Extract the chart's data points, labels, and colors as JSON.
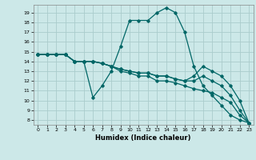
{
  "xlabel": "Humidex (Indice chaleur)",
  "bg_color": "#cce8e8",
  "grid_color": "#aacccc",
  "line_color": "#006666",
  "xlim": [
    -0.5,
    23.5
  ],
  "ylim": [
    7.5,
    19.8
  ],
  "yticks": [
    8,
    9,
    10,
    11,
    12,
    13,
    14,
    15,
    16,
    17,
    18,
    19
  ],
  "xticks": [
    0,
    1,
    2,
    3,
    4,
    5,
    6,
    7,
    8,
    9,
    10,
    11,
    12,
    13,
    14,
    15,
    16,
    17,
    18,
    19,
    20,
    21,
    22,
    23
  ],
  "lines": [
    {
      "x": [
        0,
        1,
        2,
        3,
        4,
        5,
        6,
        7,
        8,
        9,
        10,
        11,
        12,
        13,
        14,
        15,
        16,
        17,
        18,
        19,
        20,
        21,
        22,
        23
      ],
      "y": [
        14.7,
        14.7,
        14.7,
        14.7,
        14.0,
        14.0,
        10.3,
        11.5,
        13.0,
        15.5,
        18.2,
        18.2,
        18.2,
        19.0,
        19.5,
        19.0,
        17.0,
        13.5,
        11.5,
        10.5,
        9.5,
        8.5,
        8.0,
        7.7
      ]
    },
    {
      "x": [
        0,
        1,
        2,
        3,
        4,
        5,
        6,
        7,
        8,
        9,
        10,
        11,
        12,
        13,
        14,
        15,
        16,
        17,
        18,
        19,
        20,
        21,
        22,
        23
      ],
      "y": [
        14.7,
        14.7,
        14.7,
        14.7,
        14.0,
        14.0,
        14.0,
        13.8,
        13.5,
        13.0,
        12.8,
        12.5,
        12.5,
        12.0,
        12.0,
        11.8,
        11.5,
        11.2,
        11.0,
        10.8,
        10.3,
        9.8,
        8.5,
        7.7
      ]
    },
    {
      "x": [
        0,
        1,
        2,
        3,
        4,
        5,
        6,
        7,
        8,
        9,
        10,
        11,
        12,
        13,
        14,
        15,
        16,
        17,
        18,
        19,
        20,
        21,
        22,
        23
      ],
      "y": [
        14.7,
        14.7,
        14.7,
        14.7,
        14.0,
        14.0,
        14.0,
        13.8,
        13.5,
        13.2,
        13.0,
        12.8,
        12.8,
        12.5,
        12.5,
        12.2,
        12.0,
        12.0,
        12.5,
        12.0,
        11.5,
        10.5,
        9.0,
        7.7
      ]
    },
    {
      "x": [
        0,
        1,
        2,
        3,
        4,
        5,
        6,
        7,
        8,
        9,
        10,
        11,
        12,
        13,
        14,
        15,
        16,
        17,
        18,
        19,
        20,
        21,
        22,
        23
      ],
      "y": [
        14.7,
        14.7,
        14.7,
        14.7,
        14.0,
        14.0,
        14.0,
        13.8,
        13.5,
        13.2,
        13.0,
        12.8,
        12.8,
        12.5,
        12.5,
        12.2,
        12.0,
        12.5,
        13.5,
        13.0,
        12.5,
        11.5,
        10.0,
        7.7
      ]
    }
  ]
}
